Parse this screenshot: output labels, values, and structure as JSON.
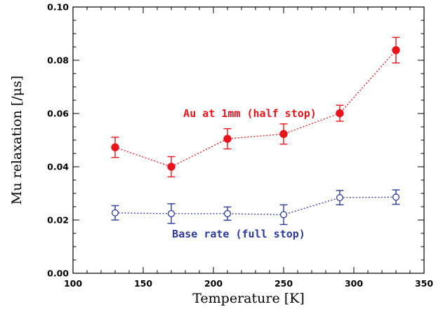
{
  "chart_data": {
    "type": "scatter",
    "xlabel": "Temperature [K]",
    "ylabel": "Mu relaxation [/μs]",
    "xlim": [
      100,
      350
    ],
    "ylim": [
      0.0,
      0.1
    ],
    "xticks": [
      "100",
      "150",
      "200",
      "250",
      "300",
      "350"
    ],
    "yticks": [
      "0.00",
      "0.02",
      "0.04",
      "0.06",
      "0.08",
      "0.10"
    ],
    "series": [
      {
        "name": "Au at 1mm (half stop)",
        "color": "#e8141c",
        "marker": "filled-circle",
        "line": "dotted",
        "x": [
          130,
          170,
          210,
          250,
          290,
          330
        ],
        "y": [
          0.0473,
          0.04,
          0.0505,
          0.0523,
          0.0601,
          0.0838
        ],
        "err": [
          0.0038,
          0.0038,
          0.0038,
          0.0038,
          0.003,
          0.0048
        ]
      },
      {
        "name": "Base rate (full stop)",
        "color": "#2b3a9c",
        "marker": "open-circle",
        "line": "dotted",
        "x": [
          130,
          170,
          210,
          250,
          290,
          330
        ],
        "y": [
          0.0227,
          0.0224,
          0.0224,
          0.022,
          0.0284,
          0.0286
        ],
        "err": [
          0.0027,
          0.0037,
          0.0025,
          0.0037,
          0.0027,
          0.0027
        ]
      }
    ]
  }
}
